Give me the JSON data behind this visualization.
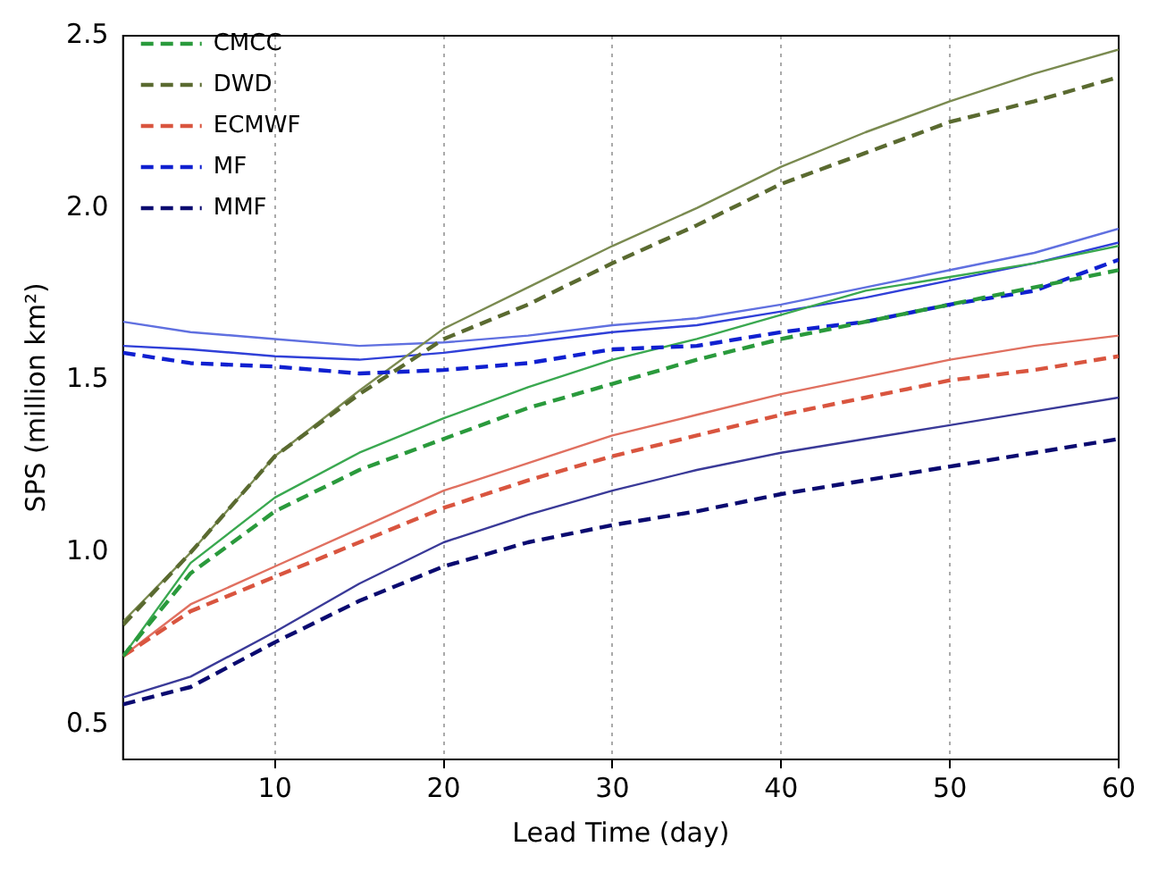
{
  "chart_data": {
    "type": "line",
    "xlabel": "Lead Time (day)",
    "ylabel": "SPS (million km²)",
    "x": [
      1,
      5,
      10,
      15,
      20,
      25,
      30,
      35,
      40,
      45,
      50,
      55,
      60
    ],
    "xlim": [
      1,
      60
    ],
    "xticks": [
      10,
      20,
      30,
      40,
      50,
      60
    ],
    "ylim": [
      0.4,
      2.5
    ],
    "yticks": [
      0.5,
      {
        "value": 1,
        "label": "1.0"
      },
      1.5,
      {
        "value": 2,
        "label": "2.0"
      },
      2.5
    ],
    "grid": "x",
    "legend": "top left",
    "marker": "none",
    "series": [
      {
        "name": "CMCC",
        "color": "#2a9a3c",
        "line_style": "dashed",
        "values": [
          0.7,
          0.94,
          1.12,
          1.24,
          1.33,
          1.42,
          1.49,
          1.56,
          1.62,
          1.67,
          1.72,
          1.77,
          1.82
        ]
      },
      {
        "name": "DWD",
        "color": "#5a6a30",
        "line_style": "dashed",
        "values": [
          0.79,
          1.0,
          1.28,
          1.46,
          1.62,
          1.72,
          1.84,
          1.95,
          2.07,
          2.16,
          2.25,
          2.31,
          2.38
        ]
      },
      {
        "name": "ECMWF",
        "color": "#d9553f",
        "line_style": "dashed",
        "values": [
          0.7,
          0.83,
          0.93,
          1.03,
          1.13,
          1.21,
          1.28,
          1.34,
          1.4,
          1.45,
          1.5,
          1.53,
          1.57
        ]
      },
      {
        "name": "MF",
        "color": "#1020d0",
        "line_style": "dashed",
        "values": [
          1.58,
          1.55,
          1.54,
          1.52,
          1.53,
          1.55,
          1.59,
          1.6,
          1.64,
          1.67,
          1.72,
          1.76,
          1.85
        ]
      },
      {
        "name": "MMF",
        "color": "#0a0a70",
        "line_style": "dashed",
        "values": [
          0.56,
          0.61,
          0.74,
          0.86,
          0.96,
          1.03,
          1.08,
          1.12,
          1.17,
          1.21,
          1.25,
          1.29,
          1.33
        ]
      },
      {
        "color": "#3aa850",
        "line_style": "solid",
        "values": [
          0.7,
          0.97,
          1.16,
          1.29,
          1.39,
          1.48,
          1.56,
          1.62,
          1.69,
          1.76,
          1.8,
          1.84,
          1.89
        ]
      },
      {
        "color": "#7a8a50",
        "line_style": "solid",
        "values": [
          0.8,
          1.0,
          1.28,
          1.47,
          1.65,
          1.77,
          1.89,
          2.0,
          2.12,
          2.22,
          2.31,
          2.39,
          2.46
        ]
      },
      {
        "color": "#e07060",
        "line_style": "solid",
        "values": [
          0.7,
          0.85,
          0.96,
          1.07,
          1.18,
          1.26,
          1.34,
          1.4,
          1.46,
          1.51,
          1.56,
          1.6,
          1.63
        ]
      },
      {
        "color": "#3040d8",
        "line_style": "solid",
        "values": [
          1.6,
          1.59,
          1.57,
          1.56,
          1.58,
          1.61,
          1.64,
          1.66,
          1.7,
          1.74,
          1.79,
          1.84,
          1.9
        ]
      },
      {
        "color": "#6070e0",
        "line_style": "solid",
        "values": [
          1.67,
          1.64,
          1.62,
          1.6,
          1.61,
          1.63,
          1.66,
          1.68,
          1.72,
          1.77,
          1.82,
          1.87,
          1.94
        ]
      },
      {
        "color": "#3a3a98",
        "line_style": "solid",
        "values": [
          0.58,
          0.64,
          0.77,
          0.91,
          1.03,
          1.11,
          1.18,
          1.24,
          1.29,
          1.33,
          1.37,
          1.41,
          1.45
        ]
      }
    ]
  }
}
